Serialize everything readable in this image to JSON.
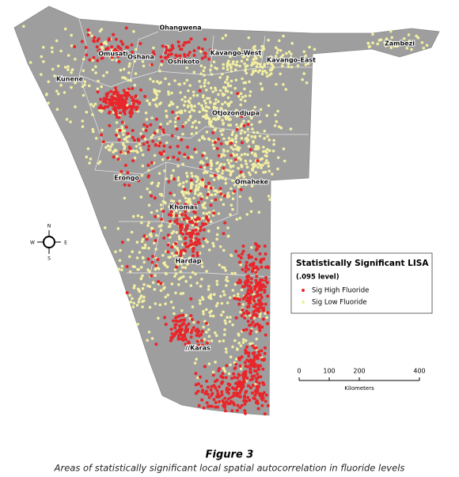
{
  "map": {
    "regions": [
      {
        "label": "Ohangwena"
      },
      {
        "label": "Omusati"
      },
      {
        "label": "Oshana"
      },
      {
        "label": "Oshikoto"
      },
      {
        "label": "Kavango-West"
      },
      {
        "label": "Kavango-East"
      },
      {
        "label": "Zambezi"
      },
      {
        "label": "Kunene"
      },
      {
        "label": "Otjozondjupa"
      },
      {
        "label": "Erongo"
      },
      {
        "label": "Omaheke"
      },
      {
        "label": "Khomas"
      },
      {
        "label": "Hardap"
      },
      {
        "label": "//Karas"
      }
    ],
    "legend": {
      "title": "Statistically Significant LISA",
      "subtitle": "(.095 level)",
      "items": [
        {
          "label": "Sig High Fluoride",
          "color": "#e8262b"
        },
        {
          "label": "Sig Low Fluoride",
          "color": "#f2efa2"
        }
      ]
    },
    "scale": {
      "ticks": [
        0,
        100,
        200,
        400
      ],
      "unit": "Kilometers"
    },
    "compass": {
      "n": "N",
      "s": "S",
      "e": "E",
      "w": "W"
    }
  },
  "caption": {
    "figure": "Figure 3",
    "text": "Areas of statistically significant local spatial autocorrelation in fluoride levels"
  }
}
